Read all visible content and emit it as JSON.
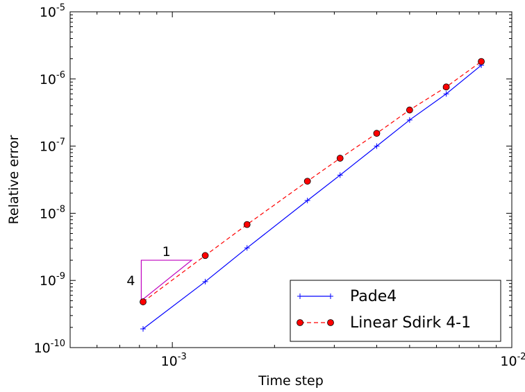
{
  "chart_data": {
    "type": "line",
    "title": "",
    "xlabel": "Time step",
    "ylabel": "Relative error",
    "xscale": "log",
    "yscale": "log",
    "xlim": [
      0.0005,
      0.01
    ],
    "ylim": [
      1e-10,
      1e-05
    ],
    "grid": false,
    "legend_position": "lower-right",
    "x_ticks": [
      {
        "value": 0.001,
        "base": "10",
        "exp": "-3"
      },
      {
        "value": 0.01,
        "base": "10",
        "exp": "-2"
      }
    ],
    "y_ticks": [
      {
        "value": 1e-10,
        "base": "10",
        "exp": "-10"
      },
      {
        "value": 1e-09,
        "base": "10",
        "exp": "-9"
      },
      {
        "value": 1e-08,
        "base": "10",
        "exp": "-8"
      },
      {
        "value": 1e-07,
        "base": "10",
        "exp": "-7"
      },
      {
        "value": 1e-06,
        "base": "10",
        "exp": "-6"
      },
      {
        "value": 1e-05,
        "base": "10",
        "exp": "-5"
      }
    ],
    "series": [
      {
        "name": "Pade4",
        "color": "#0000ff",
        "line_style": "solid",
        "marker": "plus",
        "x": [
          0.00082,
          0.00125,
          0.00166,
          0.0025,
          0.00312,
          0.004,
          0.005,
          0.00641,
          0.00813
        ],
        "y": [
          1.9e-10,
          9.6e-10,
          3.05e-09,
          1.55e-08,
          3.7e-08,
          1e-07,
          2.45e-07,
          6e-07,
          1.6e-06
        ]
      },
      {
        "name": "Linear Sdirk 4-1",
        "color": "#ff0000",
        "line_style": "dashed",
        "marker": "circle",
        "x": [
          0.00082,
          0.00125,
          0.00166,
          0.0025,
          0.00312,
          0.004,
          0.005,
          0.00641,
          0.00813
        ],
        "y": [
          4.8e-10,
          2.35e-09,
          6.8e-09,
          3e-08,
          6.6e-08,
          1.55e-07,
          3.45e-07,
          7.6e-07,
          1.82e-06
        ]
      }
    ],
    "slope_triangle": {
      "color": "#bf00bf",
      "run_label": "1",
      "rise_label": "4",
      "corner": {
        "x": 0.00081,
        "y": 2e-09
      },
      "run_end_x": 0.00114,
      "rise_end_y": 5e-10
    }
  }
}
